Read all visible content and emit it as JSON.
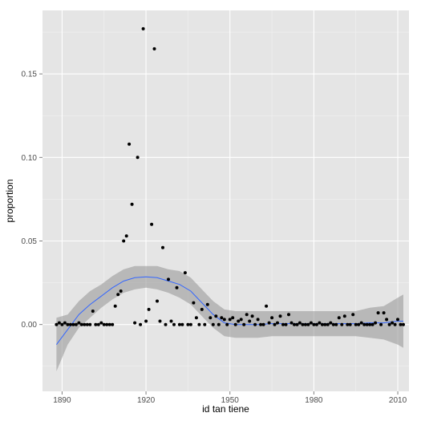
{
  "chart_data": {
    "type": "scatter",
    "xlabel": "id tan tiene",
    "ylabel": "proportion",
    "xlim": [
      1883,
      2014
    ],
    "ylim": [
      -0.04,
      0.188
    ],
    "x_ticks": [
      1890,
      1920,
      1950,
      1980,
      2010
    ],
    "y_ticks": [
      0.0,
      0.05,
      0.1,
      0.15
    ],
    "x_tick_labels": [
      "1890",
      "1920",
      "1950",
      "1980",
      "2010"
    ],
    "y_tick_labels": [
      "0.00",
      "0.05",
      "0.10",
      "0.15"
    ],
    "grid": true,
    "colors": {
      "panel": "#e5e5e5",
      "grid_major": "#ffffff",
      "grid_minor": "#f2f2f2",
      "points": "#000000",
      "smooth_line": "#3366ff",
      "ribbon": "#999999"
    },
    "points": [
      [
        1888,
        0.0
      ],
      [
        1889,
        0.001
      ],
      [
        1890,
        0.0
      ],
      [
        1891,
        0.001
      ],
      [
        1892,
        0.0
      ],
      [
        1893,
        0.0
      ],
      [
        1894,
        0.0
      ],
      [
        1895,
        0.0
      ],
      [
        1896,
        0.001
      ],
      [
        1897,
        0.0
      ],
      [
        1898,
        0.0
      ],
      [
        1899,
        0.0
      ],
      [
        1900,
        0.0
      ],
      [
        1901,
        0.008
      ],
      [
        1902,
        0.0
      ],
      [
        1903,
        0.0
      ],
      [
        1904,
        0.001
      ],
      [
        1905,
        0.0
      ],
      [
        1906,
        0.0
      ],
      [
        1907,
        0.0
      ],
      [
        1908,
        0.0
      ],
      [
        1909,
        0.011
      ],
      [
        1910,
        0.018
      ],
      [
        1911,
        0.02
      ],
      [
        1912,
        0.05
      ],
      [
        1913,
        0.053
      ],
      [
        1914,
        0.108
      ],
      [
        1915,
        0.072
      ],
      [
        1916,
        0.001
      ],
      [
        1917,
        0.1
      ],
      [
        1918,
        0.0
      ],
      [
        1919,
        0.177
      ],
      [
        1920,
        0.002
      ],
      [
        1921,
        0.009
      ],
      [
        1922,
        0.06
      ],
      [
        1923,
        0.165
      ],
      [
        1924,
        0.014
      ],
      [
        1925,
        0.002
      ],
      [
        1926,
        0.046
      ],
      [
        1927,
        0.0
      ],
      [
        1928,
        0.027
      ],
      [
        1929,
        0.002
      ],
      [
        1930,
        0.0
      ],
      [
        1931,
        0.022
      ],
      [
        1932,
        0.0
      ],
      [
        1933,
        0.0
      ],
      [
        1934,
        0.031
      ],
      [
        1935,
        0.0
      ],
      [
        1936,
        0.0
      ],
      [
        1937,
        0.013
      ],
      [
        1938,
        0.004
      ],
      [
        1939,
        0.0
      ],
      [
        1940,
        0.009
      ],
      [
        1941,
        0.0
      ],
      [
        1942,
        0.012
      ],
      [
        1943,
        0.004
      ],
      [
        1944,
        0.0
      ],
      [
        1945,
        0.005
      ],
      [
        1946,
        0.0
      ],
      [
        1947,
        0.004
      ],
      [
        1948,
        0.003
      ],
      [
        1949,
        0.0
      ],
      [
        1950,
        0.003
      ],
      [
        1951,
        0.004
      ],
      [
        1952,
        0.0
      ],
      [
        1953,
        0.002
      ],
      [
        1954,
        0.003
      ],
      [
        1955,
        0.0
      ],
      [
        1956,
        0.006
      ],
      [
        1957,
        0.002
      ],
      [
        1958,
        0.005
      ],
      [
        1959,
        0.0
      ],
      [
        1960,
        0.003
      ],
      [
        1961,
        0.0
      ],
      [
        1962,
        0.0
      ],
      [
        1963,
        0.011
      ],
      [
        1964,
        0.001
      ],
      [
        1965,
        0.004
      ],
      [
        1966,
        0.0
      ],
      [
        1967,
        0.001
      ],
      [
        1968,
        0.005
      ],
      [
        1969,
        0.0
      ],
      [
        1970,
        0.0
      ],
      [
        1971,
        0.006
      ],
      [
        1972,
        0.001
      ],
      [
        1973,
        0.0
      ],
      [
        1974,
        0.0
      ],
      [
        1975,
        0.001
      ],
      [
        1976,
        0.0
      ],
      [
        1977,
        0.0
      ],
      [
        1978,
        0.0
      ],
      [
        1979,
        0.001
      ],
      [
        1980,
        0.0
      ],
      [
        1981,
        0.0
      ],
      [
        1982,
        0.001
      ],
      [
        1983,
        0.0
      ],
      [
        1984,
        0.0
      ],
      [
        1985,
        0.0
      ],
      [
        1986,
        0.001
      ],
      [
        1987,
        0.0
      ],
      [
        1988,
        0.0
      ],
      [
        1989,
        0.004
      ],
      [
        1990,
        0.0
      ],
      [
        1991,
        0.005
      ],
      [
        1992,
        0.0
      ],
      [
        1993,
        0.0
      ],
      [
        1994,
        0.006
      ],
      [
        1995,
        0.0
      ],
      [
        1996,
        0.0
      ],
      [
        1997,
        0.001
      ],
      [
        1998,
        0.0
      ],
      [
        1999,
        0.0
      ],
      [
        2000,
        0.0
      ],
      [
        2001,
        0.0
      ],
      [
        2002,
        0.001
      ],
      [
        2003,
        0.007
      ],
      [
        2004,
        0.0
      ],
      [
        2005,
        0.007
      ],
      [
        2006,
        0.003
      ],
      [
        2007,
        0.0
      ],
      [
        2008,
        0.001
      ],
      [
        2009,
        0.0
      ],
      [
        2010,
        0.003
      ],
      [
        2011,
        0.0
      ],
      [
        2012,
        0.0
      ]
    ],
    "smooth": {
      "x": [
        1888,
        1892,
        1896,
        1900,
        1904,
        1908,
        1912,
        1916,
        1920,
        1924,
        1928,
        1932,
        1936,
        1940,
        1944,
        1948,
        1952,
        1956,
        1960,
        1965,
        1970,
        1975,
        1980,
        1985,
        1990,
        1995,
        2000,
        2005,
        2010,
        2012
      ],
      "y": [
        -0.012,
        -0.003,
        0.006,
        0.012,
        0.017,
        0.022,
        0.026,
        0.028,
        0.0285,
        0.028,
        0.026,
        0.024,
        0.02,
        0.013,
        0.006,
        0.001,
        0.0,
        0.0,
        0.0,
        0.0005,
        0.0005,
        0.0005,
        0.0005,
        0.0005,
        0.0005,
        0.0005,
        0.001,
        0.001,
        0.002,
        0.002
      ],
      "lower": [
        -0.028,
        -0.012,
        -0.002,
        0.004,
        0.01,
        0.015,
        0.019,
        0.021,
        0.022,
        0.021,
        0.019,
        0.016,
        0.012,
        0.005,
        -0.002,
        -0.007,
        -0.008,
        -0.008,
        -0.008,
        -0.007,
        -0.007,
        -0.007,
        -0.007,
        -0.007,
        -0.007,
        -0.007,
        -0.008,
        -0.009,
        -0.012,
        -0.014
      ],
      "upper": [
        0.004,
        0.006,
        0.014,
        0.02,
        0.024,
        0.029,
        0.033,
        0.035,
        0.035,
        0.035,
        0.033,
        0.032,
        0.028,
        0.021,
        0.014,
        0.009,
        0.008,
        0.008,
        0.008,
        0.008,
        0.008,
        0.008,
        0.008,
        0.008,
        0.008,
        0.008,
        0.01,
        0.011,
        0.016,
        0.018
      ]
    }
  }
}
